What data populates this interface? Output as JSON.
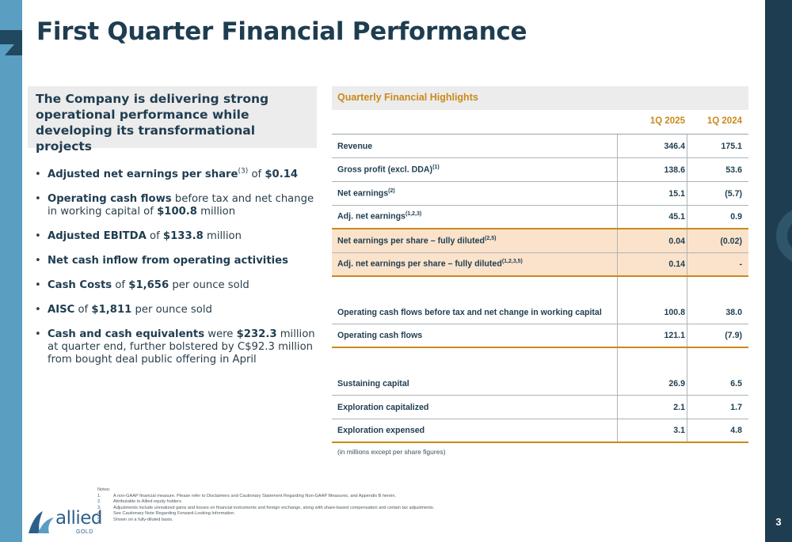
{
  "page": {
    "title": "First Quarter Financial Performance",
    "number": "3"
  },
  "callout": {
    "text": "The Company is delivering strong operational performance while developing its transformational projects"
  },
  "bullets": [
    {
      "bold": "Adjusted net earnings per share",
      "sup": "(3)",
      "mid": " of ",
      "bold2": "$0.14",
      "rest": ""
    },
    {
      "bold": "Operating cash flows",
      "sup": "",
      "mid": " before tax and net change in working capital of ",
      "bold2": "$100.8",
      "rest": " million"
    },
    {
      "bold": "Adjusted EBITDA",
      "sup": "",
      "mid": " of ",
      "bold2": "$133.8",
      "rest": " million"
    },
    {
      "bold": "Net cash inflow from operating activities",
      "sup": "",
      "mid": "",
      "bold2": "",
      "rest": ""
    },
    {
      "bold": "Cash Costs",
      "sup": "",
      "mid": " of ",
      "bold2": "$1,656",
      "rest": " per ounce sold"
    },
    {
      "bold": "AISC",
      "sup": "",
      "mid": " of ",
      "bold2": "$1,811",
      "rest": " per ounce sold"
    },
    {
      "bold": "Cash and cash equivalents",
      "sup": "",
      "mid": " were ",
      "bold2": "$232.3",
      "rest": " million at quarter end, further bolstered by C$92.3 million from bought deal public offering in April"
    }
  ],
  "table": {
    "title": "Quarterly Financial Highlights",
    "columns": [
      "1Q 2025",
      "1Q 2024"
    ],
    "rows": [
      {
        "label": "Revenue",
        "sup": "",
        "v1": "346.4",
        "v2": "175.1"
      },
      {
        "label": "Gross profit (excl. DDA)",
        "sup": "(1)",
        "v1": "138.6",
        "v2": "53.6"
      },
      {
        "label": "Net earnings",
        "sup": "(2)",
        "v1": "15.1",
        "v2": "(5.7)"
      },
      {
        "label": "Adj. net earnings",
        "sup": "(1,2,3)",
        "v1": "45.1",
        "v2": "0.9"
      },
      {
        "label": "Net earnings per share – fully diluted",
        "sup": "(2,5)",
        "v1": "0.04",
        "v2": "(0.02)"
      },
      {
        "label": "Adj. net earnings per share – fully diluted",
        "sup": "(1,2,3,5)",
        "v1": "0.14",
        "v2": "-"
      },
      {
        "label": "Operating cash flows before tax and net change in working capital",
        "sup": "",
        "v1": "100.8",
        "v2": "38.0"
      },
      {
        "label": "Operating cash flows",
        "sup": "",
        "v1": "121.1",
        "v2": "(7.9)"
      },
      {
        "label": "Sustaining capital",
        "sup": "",
        "v1": "26.9",
        "v2": "6.5"
      },
      {
        "label": "Exploration capitalized",
        "sup": "",
        "v1": "2.1",
        "v2": "1.7"
      },
      {
        "label": "Exploration expensed",
        "sup": "",
        "v1": "3.1",
        "v2": "4.8"
      }
    ],
    "footnote": "(in millions except per share figures)",
    "highlight_color": "#fbe3cb",
    "accent_color": "#c98a1a"
  },
  "notes": {
    "heading": "Notes:",
    "items": [
      {
        "num": "1.",
        "text": "A non-GAAP financial measure. Please refer to Disclaimers and Cautionary Statement Regarding Non-GAAP Measures, and Appendix B herein."
      },
      {
        "num": "2.",
        "text": "Attributable to Allied equity holders."
      },
      {
        "num": "3.",
        "text": "Adjustments include unrealized gains and losses on financial instruments and foreign exchange, along with share-based compensation and certain tax adjustments."
      },
      {
        "num": "4.",
        "text": "See Cautionary Note Regarding Forward-Looking Information."
      },
      {
        "num": "5.",
        "text": "Shown on a fully-diluted basis."
      }
    ]
  },
  "logo": {
    "word": "allied",
    "sub": "GOLD"
  },
  "colors": {
    "navy": "#1f3d50",
    "sky": "#5a9ec2",
    "gold": "#c98a1a"
  }
}
